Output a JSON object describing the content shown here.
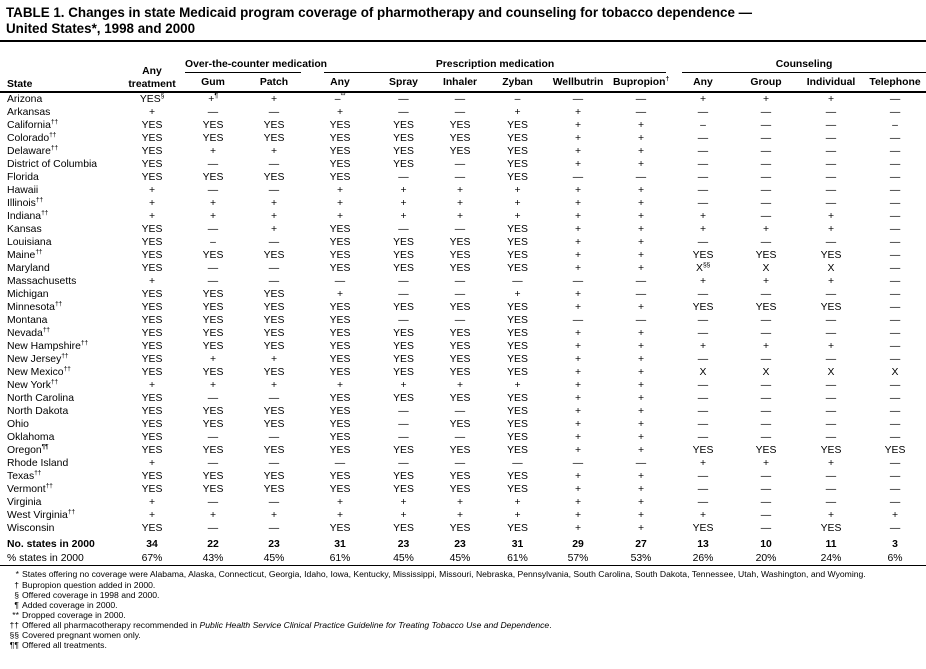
{
  "title": {
    "line1": "TABLE 1. Changes in state Medicaid program coverage of pharmotherapy and counseling for tobacco dependence  —",
    "line2": "United States*, 1998 and 2000"
  },
  "table": {
    "header": {
      "state": "State",
      "any_treatment": {
        "line1": "Any",
        "line2": "treatment"
      },
      "groups": [
        {
          "label": "Over-the-counter medication",
          "cols": [
            "Gum",
            "Patch"
          ]
        },
        {
          "label": "Prescription medication",
          "cols": [
            "Any",
            "Spray",
            "Inhaler",
            "Zyban",
            "Wellbutrin",
            "Bupropion^†"
          ]
        },
        {
          "label": "Counseling",
          "cols": [
            "Any",
            "Group",
            "Individual",
            "Telephone"
          ]
        }
      ]
    },
    "rows": [
      [
        "Arizona",
        "YES^§",
        "+^¶",
        "+",
        "–^**",
        "—",
        "—",
        "–",
        "—",
        "—",
        "+",
        "+",
        "+",
        "—"
      ],
      [
        "Arkansas",
        "+",
        "—",
        "—",
        "+",
        "—",
        "—",
        "+",
        "+",
        "—",
        "—",
        "—",
        "—",
        "—"
      ],
      [
        "California^††",
        "YES",
        "YES",
        "YES",
        "YES",
        "YES",
        "YES",
        "YES",
        "+",
        "+",
        "–",
        "—",
        "—",
        "–"
      ],
      [
        "Colorado^††",
        "YES",
        "YES",
        "YES",
        "YES",
        "YES",
        "YES",
        "YES",
        "+",
        "+",
        "—",
        "—",
        "—",
        "—"
      ],
      [
        "Delaware^††",
        "YES",
        "+",
        "+",
        "YES",
        "YES",
        "YES",
        "YES",
        "+",
        "+",
        "—",
        "—",
        "—",
        "—"
      ],
      [
        "District of Columbia",
        "YES",
        "—",
        "—",
        "YES",
        "YES",
        "—",
        "YES",
        "+",
        "+",
        "—",
        "—",
        "—",
        "—"
      ],
      [
        "Florida",
        "YES",
        "YES",
        "YES",
        "YES",
        "—",
        "—",
        "YES",
        "—",
        "—",
        "—",
        "—",
        "—",
        "—"
      ],
      [
        "Hawaii",
        "+",
        "—",
        "—",
        "+",
        "+",
        "+",
        "+",
        "+",
        "+",
        "—",
        "—",
        "—",
        "—"
      ],
      [
        "Illinois^††",
        "+",
        "+",
        "+",
        "+",
        "+",
        "+",
        "+",
        "+",
        "+",
        "—",
        "—",
        "—",
        "—"
      ],
      [
        "Indiana^††",
        "+",
        "+",
        "+",
        "+",
        "+",
        "+",
        "+",
        "+",
        "+",
        "+",
        "—",
        "+",
        "—"
      ],
      [
        "Kansas",
        "YES",
        "—",
        "+",
        "YES",
        "—",
        "—",
        "YES",
        "+",
        "+",
        "+",
        "+",
        "+",
        "—"
      ],
      [
        "Louisiana",
        "YES",
        "–",
        "—",
        "YES",
        "YES",
        "YES",
        "YES",
        "+",
        "+",
        "—",
        "—",
        "—",
        "—"
      ],
      [
        "Maine^††",
        "YES",
        "YES",
        "YES",
        "YES",
        "YES",
        "YES",
        "YES",
        "+",
        "+",
        "YES",
        "YES",
        "YES",
        "—"
      ],
      [
        "Maryland",
        "YES",
        "—",
        "—",
        "YES",
        "YES",
        "YES",
        "YES",
        "+",
        "+",
        "X^§§",
        "X",
        "X",
        "—"
      ],
      [
        "Massachusetts",
        "+",
        "—",
        "—",
        "—",
        "—",
        "—",
        "—",
        "—",
        "—",
        "+",
        "+",
        "+",
        "—"
      ],
      [
        "Michigan",
        "YES",
        "YES",
        "YES",
        "+",
        "—",
        "—",
        "+",
        "+",
        "—",
        "—",
        "—",
        "—",
        "—"
      ],
      [
        "Minnesota^††",
        "YES",
        "YES",
        "YES",
        "YES",
        "YES",
        "YES",
        "YES",
        "+",
        "+",
        "YES",
        "YES",
        "YES",
        "—"
      ],
      [
        "Montana",
        "YES",
        "YES",
        "YES",
        "YES",
        "—",
        "—",
        "YES",
        "—",
        "—",
        "—",
        "—",
        "—",
        "—"
      ],
      [
        "Nevada^††",
        "YES",
        "YES",
        "YES",
        "YES",
        "YES",
        "YES",
        "YES",
        "+",
        "+",
        "—",
        "—",
        "—",
        "—"
      ],
      [
        "New Hampshire^††",
        "YES",
        "YES",
        "YES",
        "YES",
        "YES",
        "YES",
        "YES",
        "+",
        "+",
        "+",
        "+",
        "+",
        "—"
      ],
      [
        "New Jersey^††",
        "YES",
        "+",
        "+",
        "YES",
        "YES",
        "YES",
        "YES",
        "+",
        "+",
        "—",
        "—",
        "—",
        "—"
      ],
      [
        "New Mexico^††",
        "YES",
        "YES",
        "YES",
        "YES",
        "YES",
        "YES",
        "YES",
        "+",
        "+",
        "X",
        "X",
        "X",
        "X"
      ],
      [
        "New York^††",
        "+",
        "+",
        "+",
        "+",
        "+",
        "+",
        "+",
        "+",
        "+",
        "—",
        "—",
        "—",
        "—"
      ],
      [
        "North Carolina",
        "YES",
        "—",
        "—",
        "YES",
        "YES",
        "YES",
        "YES",
        "+",
        "+",
        "—",
        "—",
        "—",
        "—"
      ],
      [
        "North Dakota",
        "YES",
        "YES",
        "YES",
        "YES",
        "—",
        "—",
        "YES",
        "+",
        "+",
        "—",
        "—",
        "—",
        "—"
      ],
      [
        "Ohio",
        "YES",
        "YES",
        "YES",
        "YES",
        "—",
        "YES",
        "YES",
        "+",
        "+",
        "—",
        "—",
        "—",
        "—"
      ],
      [
        "Oklahoma",
        "YES",
        "—",
        "—",
        "YES",
        "—",
        "—",
        "YES",
        "+",
        "+",
        "—",
        "—",
        "—",
        "—"
      ],
      [
        "Oregon^¶¶",
        "YES",
        "YES",
        "YES",
        "YES",
        "YES",
        "YES",
        "YES",
        "+",
        "+",
        "YES",
        "YES",
        "YES",
        "YES"
      ],
      [
        "Rhode Island",
        "+",
        "—",
        "—",
        "—",
        "—",
        "—",
        "—",
        "—",
        "—",
        "+",
        "+",
        "+",
        "—"
      ],
      [
        "Texas^††",
        "YES",
        "YES",
        "YES",
        "YES",
        "YES",
        "YES",
        "YES",
        "+",
        "+",
        "—",
        "—",
        "—",
        "—"
      ],
      [
        "Vermont^††",
        "YES",
        "YES",
        "YES",
        "YES",
        "YES",
        "YES",
        "YES",
        "+",
        "+",
        "—",
        "—",
        "—",
        "—"
      ],
      [
        "Virginia",
        "+",
        "—",
        "—",
        "+",
        "+",
        "+",
        "+",
        "+",
        "+",
        "—",
        "—",
        "—",
        "—"
      ],
      [
        "West Virginia^††",
        "+",
        "+",
        "+",
        "+",
        "+",
        "+",
        "+",
        "+",
        "+",
        "+",
        "—",
        "+",
        "+"
      ],
      [
        "Wisconsin",
        "YES",
        "—",
        "—",
        "YES",
        "YES",
        "YES",
        "YES",
        "+",
        "+",
        "YES",
        "—",
        "YES",
        "—"
      ]
    ],
    "summary_rows": [
      {
        "label": "No. states in 2000",
        "bold": true,
        "values": [
          "34",
          "22",
          "23",
          "31",
          "23",
          "23",
          "31",
          "29",
          "27",
          "13",
          "10",
          "11",
          "3"
        ]
      },
      {
        "label": "% states in 2000",
        "bold": false,
        "values": [
          "67%",
          "43%",
          "45%",
          "61%",
          "45%",
          "45%",
          "61%",
          "57%",
          "53%",
          "26%",
          "20%",
          "24%",
          "6%"
        ]
      }
    ]
  },
  "footnotes": [
    {
      "marker": "*",
      "text": "States offering no coverage were Alabama, Alaska, Connecticut, Georgia, Idaho, Iowa, Kentucky, Mississippi, Missouri, Nebraska, Pennsylvania, South Carolina, South Dakota, Tennessee, Utah, Washington, and Wyoming."
    },
    {
      "marker": "†",
      "text": "Bupropion question added in 2000."
    },
    {
      "marker": "§",
      "text": "Offered coverage in 1998 and 2000."
    },
    {
      "marker": "¶",
      "text": "Added coverage in 2000."
    },
    {
      "marker": "**",
      "text": "Dropped coverage in 2000."
    },
    {
      "marker": "††",
      "text": "Offered all pharmacotherapy recommended in ",
      "italic": "Public Health Service Clinical Practice Guideline for Treating Tobacco Use and Dependence",
      "after": "."
    },
    {
      "marker": "§§",
      "text": "Covered pregnant women only."
    },
    {
      "marker": "¶¶",
      "text": "Offered all treatments."
    }
  ]
}
